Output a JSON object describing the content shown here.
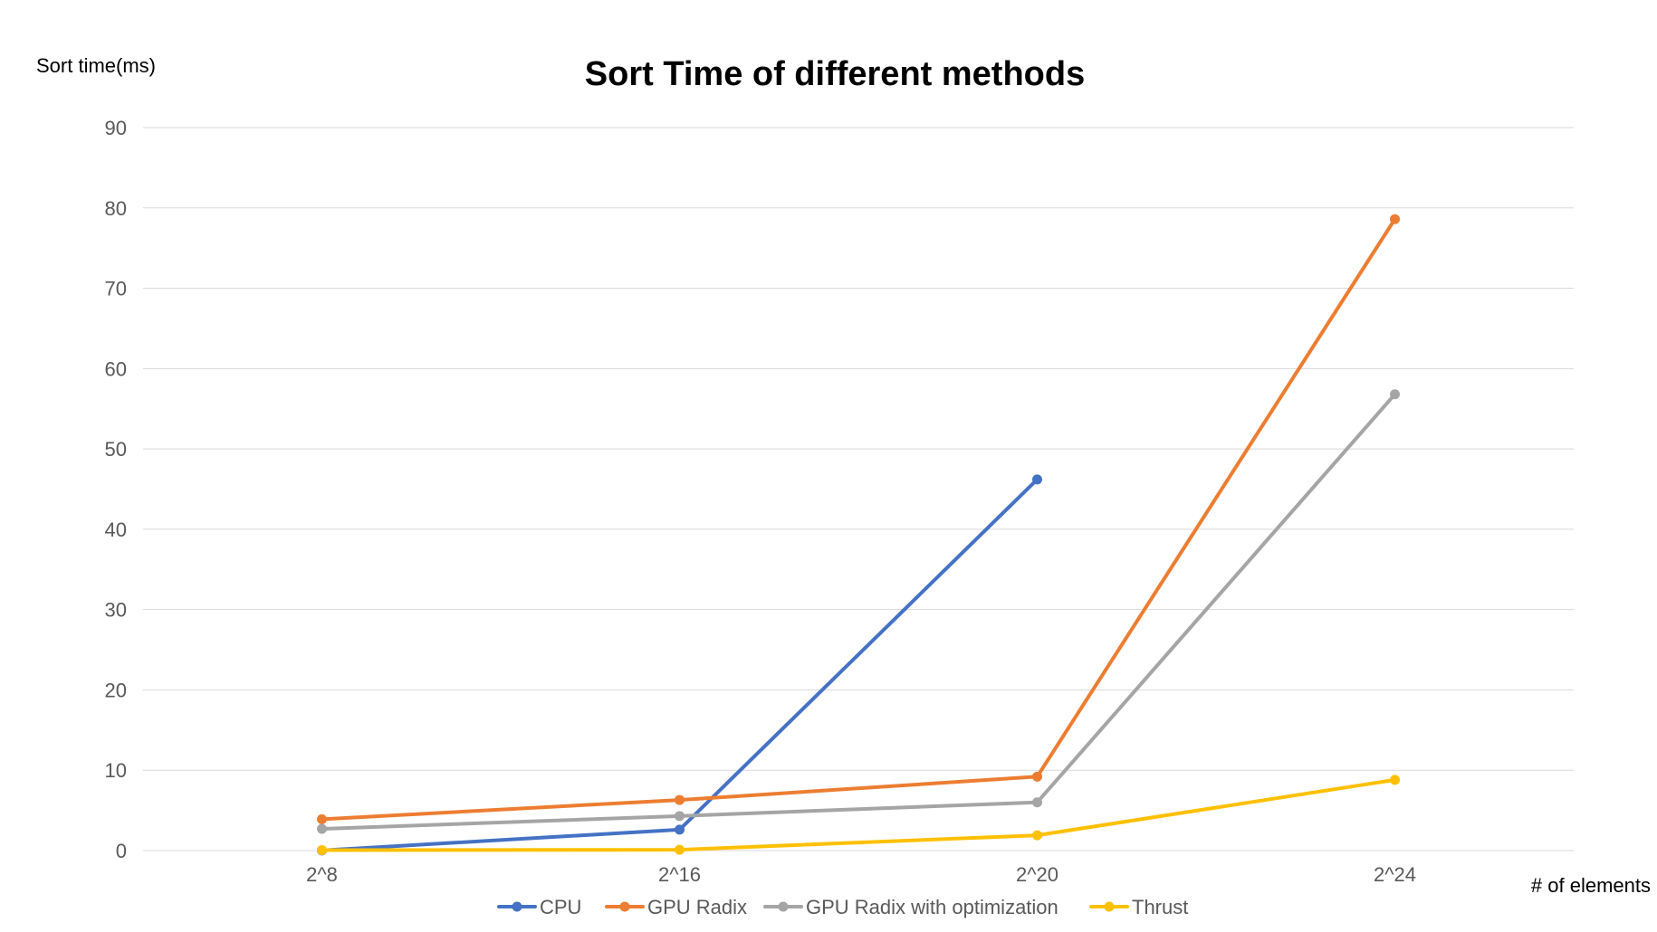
{
  "chart_data": {
    "type": "line",
    "title": "Sort Time of different methods",
    "ylabel": "Sort time(ms)",
    "xlabel": "# of elements",
    "categories": [
      "2^8",
      "2^16",
      "2^20",
      "2^24"
    ],
    "ylim": [
      0,
      90
    ],
    "yticks": [
      0,
      10,
      20,
      30,
      40,
      50,
      60,
      70,
      80,
      90
    ],
    "grid": true,
    "legend_position": "bottom",
    "series": [
      {
        "name": "CPU",
        "color": "#4472C4",
        "values": [
          0.02,
          2.6,
          46.2,
          null
        ]
      },
      {
        "name": "GPU Radix",
        "color": "#ED7D31",
        "values": [
          3.9,
          6.3,
          9.2,
          78.6
        ]
      },
      {
        "name": "GPU Radix with optimization",
        "color": "#A5A5A5",
        "values": [
          2.7,
          4.3,
          6.0,
          56.8
        ]
      },
      {
        "name": "Thrust",
        "color": "#FFC000",
        "values": [
          0.05,
          0.1,
          1.9,
          8.8
        ]
      }
    ]
  }
}
